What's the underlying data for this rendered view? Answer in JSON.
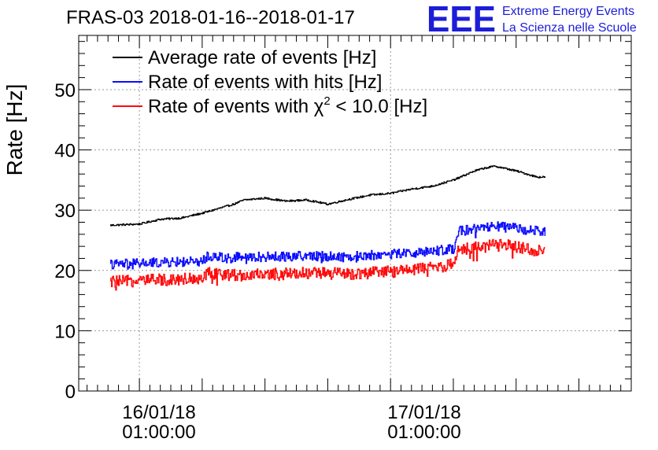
{
  "chart_data": {
    "type": "line",
    "title": "FRAS-03 2018-01-16--2018-01-17",
    "ylabel": "Rate [Hz]",
    "xlabel": "",
    "ylim": [
      0,
      59
    ],
    "xlim_hours": [
      -2.9,
      23.5
    ],
    "yticks": [
      0,
      10,
      20,
      30,
      40,
      50
    ],
    "ytick_labels": [
      "0",
      "10",
      "20",
      "30",
      "40",
      "50"
    ],
    "xticks_hours": [
      0,
      12
    ],
    "xtick_labels": [
      {
        "date": "16/01/18",
        "time": "01:00:00"
      },
      {
        "date": "17/01/18",
        "time": "01:00:00"
      }
    ],
    "grid": true,
    "legend_position": "top-left",
    "x_start_hours": -1.4,
    "x_end_hours": 19.4,
    "series": [
      {
        "name": "Average rate of events [Hz]",
        "color": "#000000",
        "noise": 0.15,
        "anchors": [
          [
            -1.4,
            27.5
          ],
          [
            0,
            27.7
          ],
          [
            1,
            28.5
          ],
          [
            2,
            28.7
          ],
          [
            3,
            29.5
          ],
          [
            4.5,
            31.0
          ],
          [
            5,
            31.7
          ],
          [
            6,
            32.0
          ],
          [
            7,
            31.5
          ],
          [
            8,
            31.7
          ],
          [
            9,
            31.0
          ],
          [
            10,
            31.8
          ],
          [
            11,
            32.5
          ],
          [
            12,
            32.8
          ],
          [
            13,
            33.5
          ],
          [
            14,
            34.0
          ],
          [
            15,
            35.0
          ],
          [
            16,
            36.5
          ],
          [
            16.5,
            37.0
          ],
          [
            17,
            37.3
          ],
          [
            18,
            36.5
          ],
          [
            19,
            35.5
          ],
          [
            19.4,
            35.5
          ]
        ]
      },
      {
        "name": "Rate of events with hits [Hz]",
        "color": "#0b0bff",
        "noise": 0.8,
        "anchors": [
          [
            -1.4,
            21.0
          ],
          [
            0,
            21.2
          ],
          [
            2,
            21.4
          ],
          [
            3,
            21.5
          ],
          [
            3.2,
            22.3
          ],
          [
            5,
            22.2
          ],
          [
            8,
            22.4
          ],
          [
            10,
            22.3
          ],
          [
            12,
            22.7
          ],
          [
            14,
            23.2
          ],
          [
            15,
            23.6
          ],
          [
            15.2,
            26.5
          ],
          [
            17,
            27.3
          ],
          [
            18,
            27.0
          ],
          [
            19.4,
            26.3
          ]
        ]
      },
      {
        "name": "Rate of events with χ² < 10.0 [Hz]",
        "color": "#ff0b0b",
        "noise": 1.0,
        "anchors": [
          [
            -1.4,
            18.1
          ],
          [
            0,
            18.3
          ],
          [
            2,
            18.6
          ],
          [
            3,
            18.8
          ],
          [
            3.2,
            19.5
          ],
          [
            5,
            19.2
          ],
          [
            8,
            19.6
          ],
          [
            10,
            19.4
          ],
          [
            12,
            19.8
          ],
          [
            14,
            20.5
          ],
          [
            15,
            21.0
          ],
          [
            15.2,
            23.5
          ],
          [
            17,
            24.2
          ],
          [
            18,
            24.0
          ],
          [
            19.4,
            23.0
          ]
        ]
      }
    ]
  },
  "legend": {
    "items": [
      {
        "prefix": "Average rate of events [Hz]",
        "sup": "",
        "suffix": ""
      },
      {
        "prefix": "Rate of events with hits [Hz]",
        "sup": "",
        "suffix": ""
      },
      {
        "prefix": "Rate of events with χ",
        "sup": "2",
        "suffix": " < 10.0 [Hz]"
      }
    ]
  },
  "logo": {
    "mark": "EEE",
    "line1": "Extreme Energy Events",
    "line2": "La Scienza nelle Scuole",
    "color": "#1d1dd9"
  }
}
